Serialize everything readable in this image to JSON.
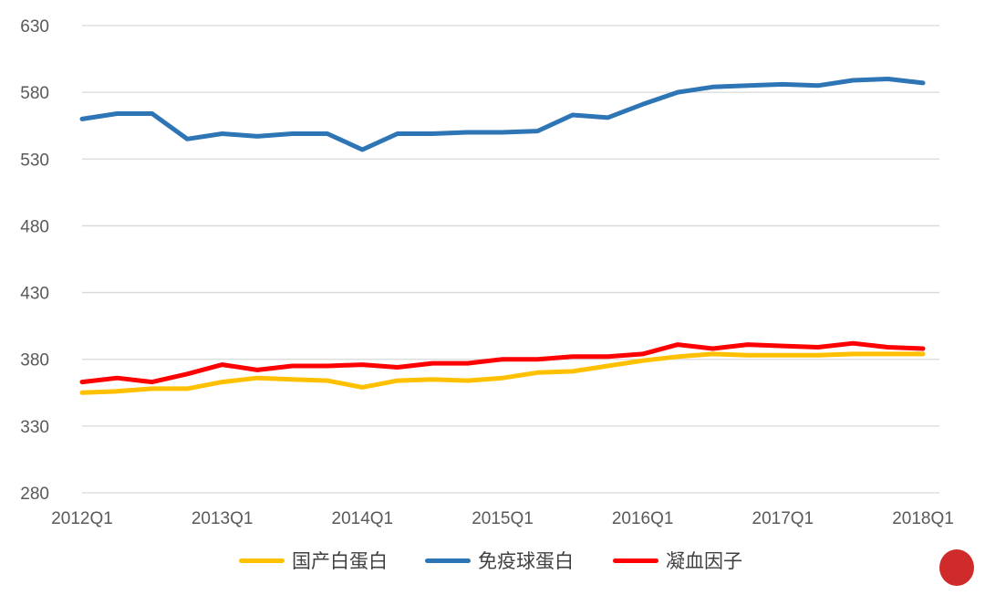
{
  "chart_data": {
    "type": "line",
    "title": "",
    "xlabel": "",
    "ylabel": "",
    "ylim": [
      280,
      630
    ],
    "yticks": [
      "280",
      "330",
      "380",
      "430",
      "480",
      "530",
      "580",
      "630"
    ],
    "xtick_labels": [
      "2012Q1",
      "2013Q1",
      "2014Q1",
      "2015Q1",
      "2016Q1",
      "2017Q1",
      "2018Q1"
    ],
    "grid": true,
    "legend": "bottom",
    "x": [
      "2012Q1",
      "2012Q2",
      "2012Q3",
      "2012Q4",
      "2013Q1",
      "2013Q2",
      "2013Q3",
      "2013Q4",
      "2014Q1",
      "2014Q2",
      "2014Q3",
      "2014Q4",
      "2015Q1",
      "2015Q2",
      "2015Q3",
      "2015Q4",
      "2016Q1",
      "2016Q2",
      "2016Q3",
      "2016Q4",
      "2017Q1",
      "2017Q2",
      "2017Q3",
      "2017Q4",
      "2018Q1"
    ],
    "series": [
      {
        "name": "国产白蛋白",
        "color": "#FFC000",
        "values": [
          355,
          356,
          358,
          358,
          363,
          366,
          365,
          364,
          359,
          364,
          365,
          364,
          366,
          370,
          371,
          375,
          379,
          382,
          384,
          383,
          383,
          383,
          384,
          384,
          384
        ]
      },
      {
        "name": "免疫球蛋白",
        "color": "#2E75B6",
        "values": [
          560,
          564,
          564,
          545,
          549,
          547,
          549,
          549,
          537,
          549,
          549,
          550,
          550,
          551,
          563,
          561,
          571,
          580,
          584,
          585,
          586,
          585,
          589,
          590,
          587
        ]
      },
      {
        "name": "凝血因子",
        "color": "#FF0000",
        "values": [
          363,
          366,
          363,
          369,
          376,
          372,
          375,
          375,
          376,
          374,
          377,
          377,
          380,
          380,
          382,
          382,
          384,
          391,
          388,
          391,
          390,
          389,
          392,
          389,
          388
        ]
      }
    ]
  }
}
